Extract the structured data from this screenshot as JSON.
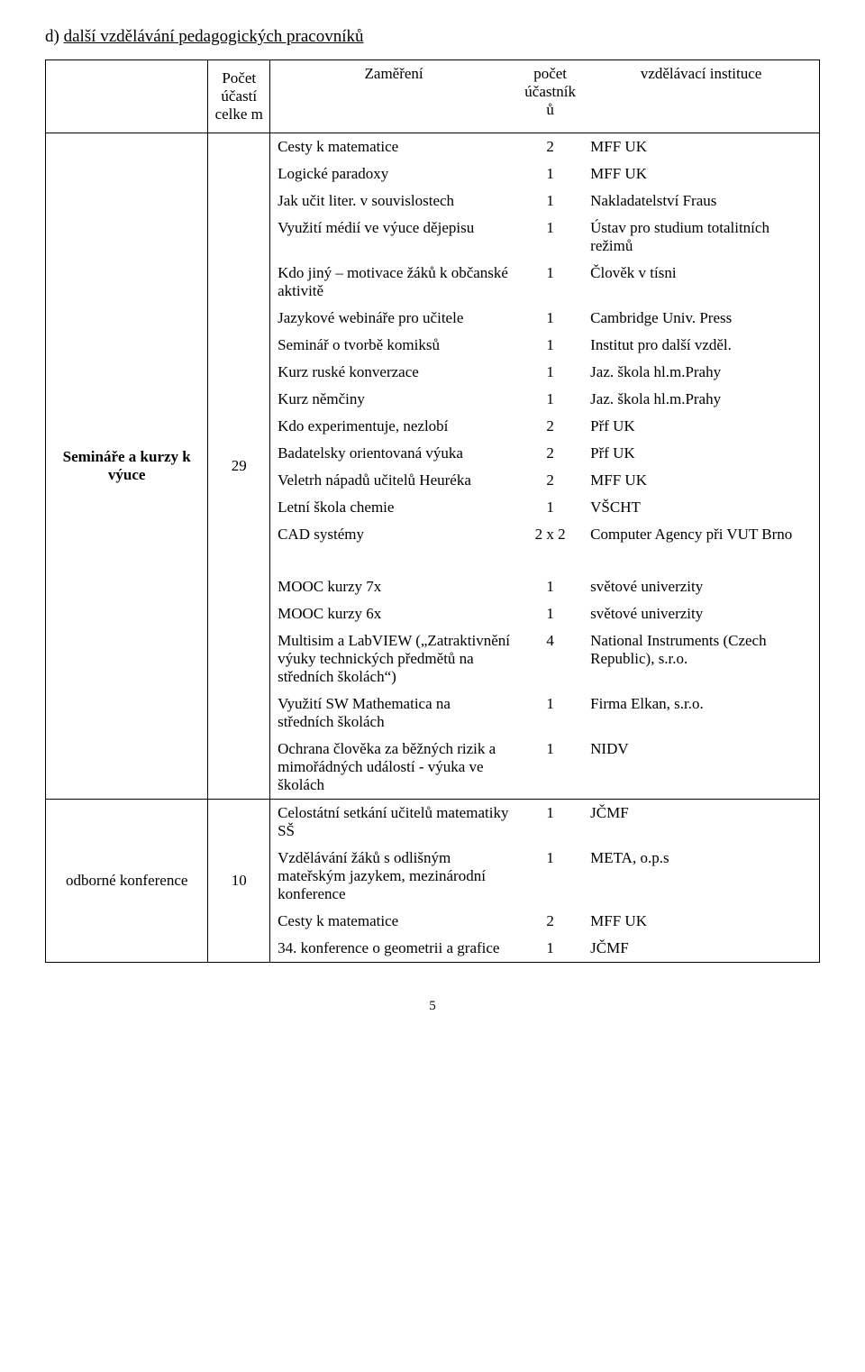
{
  "section_title_letter": "d) ",
  "section_title_rest": "další vzdělávání pedagogických pracovníků",
  "headers": {
    "cat": "",
    "count": "Počet účastí celke m",
    "focus": "Zaměření",
    "num": "počet účastník ů",
    "inst": "vzdělávací instituce"
  },
  "group1": {
    "category": "Semináře a kurzy k výuce",
    "count": "29",
    "rows_a": [
      {
        "label": "Cesty k matematice",
        "num": "2",
        "inst": "MFF UK"
      },
      {
        "label": "Logické paradoxy",
        "num": "1",
        "inst": "MFF UK"
      },
      {
        "label": "Jak učit liter. v souvislostech",
        "num": "1",
        "inst": "Nakladatelství Fraus"
      },
      {
        "label": "Využití médií ve výuce dějepisu",
        "num": "1",
        "inst": "Ústav pro studium totalitních režimů"
      },
      {
        "label": "Kdo jiný – motivace žáků k občanské aktivitě",
        "num": "1",
        "inst": "Člověk v tísni"
      },
      {
        "label": "Jazykové webináře pro učitele",
        "num": "1",
        "inst": "Cambridge Univ. Press"
      },
      {
        "label": "Seminář o tvorbě komiksů",
        "num": "1",
        "inst": "Institut pro další vzděl."
      },
      {
        "label": "Kurz ruské konverzace",
        "num": "1",
        "inst": "Jaz. škola hl.m.Prahy"
      },
      {
        "label": "Kurz němčiny",
        "num": "1",
        "inst": "Jaz. škola hl.m.Prahy"
      },
      {
        "label": "Kdo experimentuje, nezlobí",
        "num": "2",
        "inst": "Přf UK"
      },
      {
        "label": "Badatelsky orientovaná výuka",
        "num": "2",
        "inst": "Přf UK"
      },
      {
        "label": "Veletrh nápadů učitelů Heuréka",
        "num": "2",
        "inst": "MFF UK"
      },
      {
        "label": "Letní škola chemie",
        "num": "1",
        "inst": "VŠCHT"
      },
      {
        "label": "CAD systémy",
        "num": "2 x 2",
        "inst": "Computer Agency při VUT Brno"
      }
    ],
    "rows_b": [
      {
        "label": "MOOC kurzy 7x",
        "num": "1",
        "inst": "světové univerzity"
      },
      {
        "label": "MOOC kurzy 6x",
        "num": "1",
        "inst": "světové univerzity"
      },
      {
        "label": "Multisim a LabVIEW („Zatraktivnění výuky technických předmětů na středních školách“)",
        "num": "4",
        "inst": "National Instruments (Czech Republic), s.r.o."
      },
      {
        "label": "Využití SW Mathematica na středních školách",
        "num": "1",
        "inst": "Firma Elkan, s.r.o."
      },
      {
        "label": "Ochrana člověka za běžných rizik a mimořádných událostí - výuka ve školách",
        "num": "1",
        "inst": "NIDV"
      }
    ]
  },
  "group2": {
    "category": "odborné konference",
    "count": "10",
    "rows": [
      {
        "label": "Celostátní setkání učitelů matematiky SŠ",
        "num": "1",
        "inst": "JČMF"
      },
      {
        "label": "Vzdělávání žáků s odlišným mateřským jazykem, mezinárodní konference",
        "num": "1",
        "inst": "META, o.p.s"
      },
      {
        "label": "Cesty k matematice",
        "num": "2",
        "inst": "MFF UK"
      },
      {
        "label": "34. konference o geometrii a grafice",
        "num": "1",
        "inst": "JČMF"
      }
    ]
  },
  "page_number": "5"
}
